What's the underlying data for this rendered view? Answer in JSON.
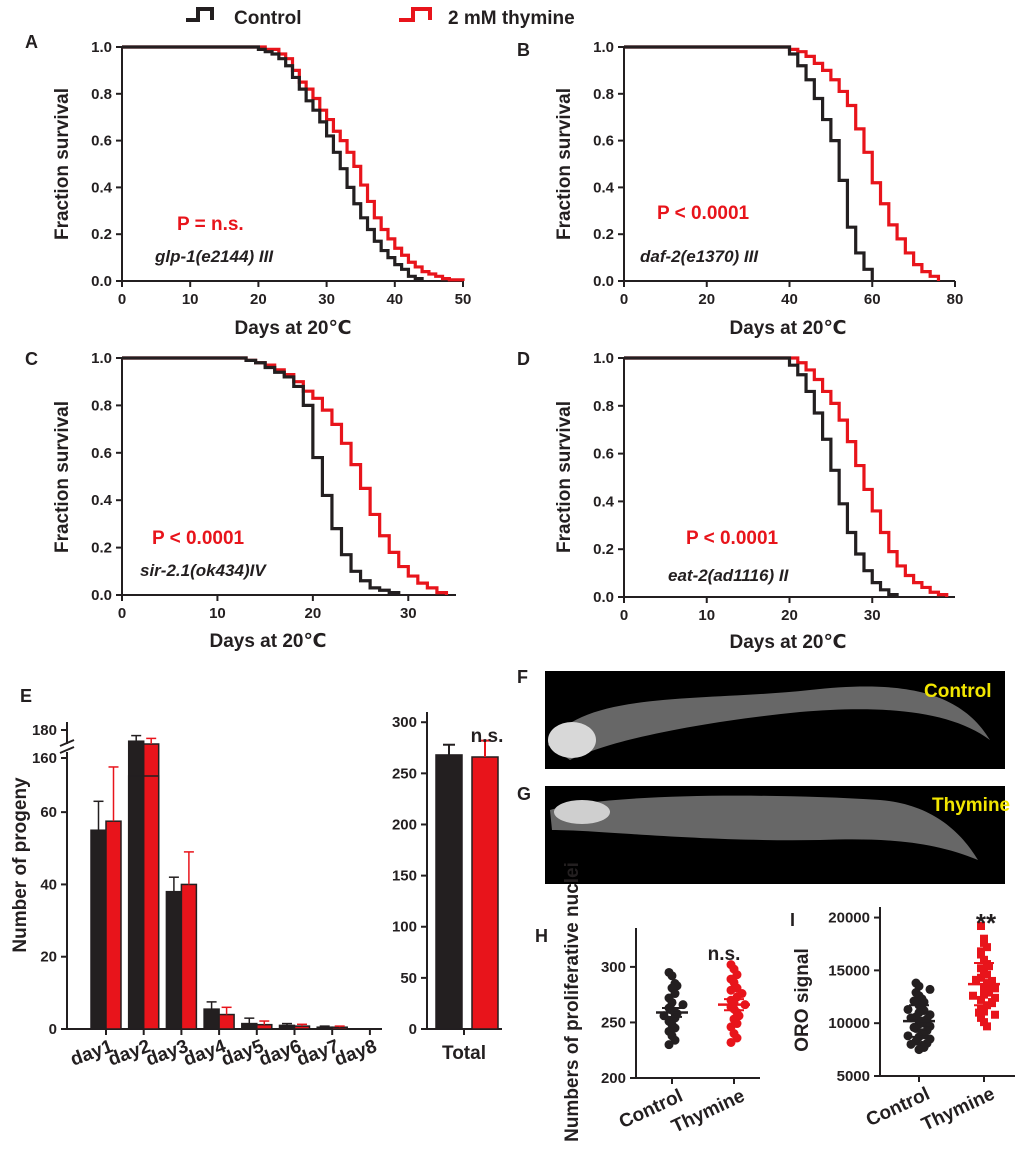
{
  "legend": {
    "control_label": "Control",
    "thymine_label": "2 mM thymine",
    "control_color": "#231f20",
    "thymine_color": "#e8141b"
  },
  "chart_data": [
    {
      "panel": "A",
      "type": "line",
      "subtype": "kaplan-meier",
      "ylabel": "Fraction survival",
      "xlabel": "Days at 20℃",
      "xlim": [
        0,
        50
      ],
      "ylim": [
        0,
        1.0
      ],
      "xticks": [
        "0",
        "10",
        "20",
        "30",
        "40",
        "50"
      ],
      "yticks": [
        "0.0",
        "0.2",
        "0.4",
        "0.6",
        "0.8",
        "1.0"
      ],
      "p_value": "P = n.s.",
      "genotype": "glp-1(e2144) III",
      "series": [
        {
          "name": "Control",
          "x": [
            0,
            19,
            20,
            21,
            22,
            23,
            24,
            25,
            26,
            27,
            28,
            29,
            30,
            31,
            32,
            33,
            34,
            35,
            36,
            37,
            38,
            39,
            40,
            41,
            42,
            43,
            44
          ],
          "y": [
            1.0,
            1.0,
            0.99,
            0.98,
            0.97,
            0.95,
            0.92,
            0.87,
            0.82,
            0.77,
            0.73,
            0.68,
            0.62,
            0.55,
            0.48,
            0.4,
            0.33,
            0.27,
            0.22,
            0.17,
            0.13,
            0.1,
            0.07,
            0.05,
            0.02,
            0.01,
            0.0
          ]
        },
        {
          "name": "2 mM thymine",
          "x": [
            0,
            19,
            21,
            23,
            24,
            25,
            26,
            27,
            28,
            29,
            30,
            31,
            32,
            33,
            34,
            35,
            36,
            37,
            38,
            39,
            40,
            41,
            42,
            43,
            44,
            45,
            46,
            47,
            48,
            50
          ],
          "y": [
            1.0,
            1.0,
            0.99,
            0.97,
            0.95,
            0.9,
            0.85,
            0.82,
            0.78,
            0.73,
            0.69,
            0.64,
            0.6,
            0.55,
            0.49,
            0.41,
            0.34,
            0.27,
            0.22,
            0.18,
            0.14,
            0.11,
            0.08,
            0.06,
            0.04,
            0.03,
            0.02,
            0.01,
            0.005,
            0.0
          ]
        }
      ]
    },
    {
      "panel": "B",
      "type": "line",
      "subtype": "kaplan-meier",
      "ylabel": "Fraction survival",
      "xlabel": "Days at 20℃",
      "xlim": [
        0,
        80
      ],
      "ylim": [
        0,
        1.0
      ],
      "xticks": [
        "0",
        "20",
        "40",
        "60",
        "80"
      ],
      "yticks": [
        "0.0",
        "0.2",
        "0.4",
        "0.6",
        "0.8",
        "1.0"
      ],
      "p_value": "P < 0.0001",
      "genotype": "daf-2(e1370) III",
      "series": [
        {
          "name": "Control",
          "x": [
            0,
            38,
            40,
            42,
            44,
            46,
            48,
            50,
            52,
            54,
            56,
            58,
            60
          ],
          "y": [
            1.0,
            1.0,
            0.97,
            0.92,
            0.86,
            0.78,
            0.69,
            0.6,
            0.43,
            0.23,
            0.12,
            0.05,
            0.0
          ]
        },
        {
          "name": "2 mM thymine",
          "x": [
            0,
            38,
            40,
            42,
            44,
            46,
            48,
            50,
            52,
            54,
            56,
            58,
            60,
            62,
            64,
            66,
            68,
            70,
            72,
            74,
            76
          ],
          "y": [
            1.0,
            1.0,
            0.99,
            0.98,
            0.96,
            0.93,
            0.9,
            0.86,
            0.81,
            0.75,
            0.65,
            0.55,
            0.42,
            0.33,
            0.24,
            0.18,
            0.12,
            0.07,
            0.04,
            0.02,
            0.0
          ]
        }
      ]
    },
    {
      "panel": "C",
      "type": "line",
      "subtype": "kaplan-meier",
      "ylabel": "Fraction survival",
      "xlabel": "Days at 20℃",
      "xlim": [
        0,
        35
      ],
      "ylim": [
        0,
        1.0
      ],
      "xticks": [
        "0",
        "10",
        "20",
        "30"
      ],
      "yticks": [
        "0.0",
        "0.2",
        "0.4",
        "0.6",
        "0.8",
        "1.0"
      ],
      "p_value": "P < 0.0001",
      "genotype": "sir-2.1(ok434)IV",
      "series": [
        {
          "name": "Control",
          "x": [
            0,
            12,
            13,
            14,
            15,
            16,
            17,
            18,
            19,
            20,
            21,
            22,
            23,
            24,
            25,
            26,
            27,
            28,
            29
          ],
          "y": [
            1.0,
            1.0,
            0.99,
            0.98,
            0.96,
            0.94,
            0.92,
            0.88,
            0.8,
            0.58,
            0.42,
            0.28,
            0.17,
            0.1,
            0.06,
            0.03,
            0.02,
            0.01,
            0.0
          ]
        },
        {
          "name": "2 mM thymine",
          "x": [
            0,
            12,
            13,
            14,
            15,
            16,
            17,
            18,
            19,
            20,
            21,
            22,
            23,
            24,
            25,
            26,
            27,
            28,
            29,
            30,
            31,
            32,
            33,
            34
          ],
          "y": [
            1.0,
            1.0,
            0.99,
            0.98,
            0.97,
            0.95,
            0.93,
            0.9,
            0.86,
            0.83,
            0.78,
            0.72,
            0.64,
            0.55,
            0.45,
            0.34,
            0.25,
            0.18,
            0.12,
            0.08,
            0.05,
            0.03,
            0.01,
            0.0
          ]
        }
      ]
    },
    {
      "panel": "D",
      "type": "line",
      "subtype": "kaplan-meier",
      "ylabel": "Fraction survival",
      "xlabel": "Days at 20℃",
      "xlim": [
        0,
        40
      ],
      "ylim": [
        0,
        1.0
      ],
      "xticks": [
        "0",
        "10",
        "20",
        "30"
      ],
      "yticks": [
        "0.0",
        "0.2",
        "0.4",
        "0.6",
        "0.8",
        "1.0"
      ],
      "p_value": "P < 0.0001",
      "genotype": "eat-2(ad1116) II",
      "series": [
        {
          "name": "Control",
          "x": [
            0,
            19,
            20,
            21,
            22,
            23,
            24,
            25,
            26,
            27,
            28,
            29,
            30,
            31,
            32,
            33
          ],
          "y": [
            1.0,
            1.0,
            0.97,
            0.93,
            0.86,
            0.77,
            0.66,
            0.53,
            0.39,
            0.27,
            0.18,
            0.11,
            0.06,
            0.03,
            0.01,
            0.0
          ]
        },
        {
          "name": "2 mM thymine",
          "x": [
            0,
            20,
            21,
            22,
            23,
            24,
            25,
            26,
            27,
            28,
            29,
            30,
            31,
            32,
            33,
            34,
            35,
            36,
            37,
            38,
            39
          ],
          "y": [
            1.0,
            1.0,
            0.98,
            0.95,
            0.91,
            0.86,
            0.81,
            0.74,
            0.65,
            0.55,
            0.45,
            0.36,
            0.27,
            0.19,
            0.13,
            0.09,
            0.06,
            0.04,
            0.02,
            0.01,
            0.0
          ]
        }
      ]
    },
    {
      "panel": "E",
      "type": "bar",
      "ylabel": "Number of progeny",
      "axis_break": true,
      "yticks_lower": [
        "0",
        "20",
        "40",
        "60"
      ],
      "yticks_upper": [
        "160",
        "180"
      ],
      "categories": [
        "day1",
        "day2",
        "day3",
        "day4",
        "day5",
        "day6",
        "day7",
        "day8"
      ],
      "series": [
        {
          "name": "Control",
          "values": [
            55,
            172,
            38,
            5.5,
            1.5,
            1.0,
            0.5,
            0
          ],
          "errors": [
            8,
            4,
            4,
            2,
            1.5,
            0.5,
            0.3,
            0
          ]
        },
        {
          "name": "2 mM thymine",
          "values": [
            57.5,
            170,
            40,
            4,
            1.2,
            0.8,
            0.5,
            0
          ],
          "errors": [
            15,
            4,
            9,
            2,
            1.0,
            0.5,
            0.3,
            0
          ]
        }
      ]
    },
    {
      "panel": "E-total",
      "type": "bar",
      "categories": [
        "Total"
      ],
      "ylim": [
        0,
        310
      ],
      "yticks": [
        "0",
        "50",
        "100",
        "150",
        "200",
        "250",
        "300"
      ],
      "annotation": "n.s.",
      "series": [
        {
          "name": "Control",
          "values": [
            268
          ],
          "errors": [
            10
          ]
        },
        {
          "name": "2 mM thymine",
          "values": [
            266
          ],
          "errors": [
            16
          ]
        }
      ]
    },
    {
      "panel": "H",
      "type": "scatter",
      "ylabel": "Numbers of proliferative nuclei",
      "ylim": [
        200,
        335
      ],
      "yticks": [
        "200",
        "250",
        "300"
      ],
      "categories": [
        "Control",
        "Thymine"
      ],
      "annotation": "n.s.",
      "series": [
        {
          "name": "Control",
          "mean": 259,
          "sem": 4,
          "values": [
            295,
            292,
            285,
            283,
            281,
            276,
            272,
            268,
            266,
            263,
            261,
            259,
            258,
            256,
            254,
            251,
            248,
            245,
            242,
            238,
            234,
            230
          ]
        },
        {
          "name": "Thymine",
          "mean": 266,
          "sem": 5,
          "values": [
            302,
            298,
            293,
            289,
            286,
            281,
            279,
            276,
            273,
            270,
            268,
            266,
            264,
            262,
            259,
            256,
            253,
            249,
            246,
            240,
            236,
            232
          ]
        }
      ]
    },
    {
      "panel": "I",
      "type": "scatter",
      "ylabel": "ORO signal",
      "ylim": [
        5000,
        21000
      ],
      "yticks": [
        "5000",
        "10000",
        "15000",
        "20000"
      ],
      "categories": [
        "Control",
        "Thymine"
      ],
      "annotation": "**",
      "series": [
        {
          "name": "Control",
          "mean": 10200,
          "sd": 1500,
          "values": [
            13800,
            13500,
            13200,
            12900,
            12600,
            12300,
            12000,
            11700,
            11500,
            11200,
            11000,
            10800,
            10600,
            10400,
            10200,
            10000,
            9900,
            9700,
            9500,
            9300,
            9100,
            8900,
            8700,
            8500,
            8300,
            8100,
            7900,
            7700,
            7500,
            12100,
            11300,
            10500,
            9600,
            8800,
            8000
          ]
        },
        {
          "name": "Thymine",
          "mean": 13700,
          "sd": 2000,
          "values": [
            19200,
            18000,
            17200,
            16500,
            16000,
            15600,
            15200,
            14900,
            14600,
            14300,
            14000,
            13800,
            13600,
            13400,
            13100,
            12900,
            12700,
            12400,
            12200,
            12000,
            11700,
            11400,
            11100,
            10800,
            10500,
            10100,
            9700,
            15400,
            14100,
            13300,
            12600,
            11900,
            11000,
            16800,
            17600
          ]
        }
      ]
    }
  ],
  "panels": {
    "F": {
      "letter": "F",
      "caption": "Control"
    },
    "G": {
      "letter": "G",
      "caption": "Thymine"
    }
  }
}
